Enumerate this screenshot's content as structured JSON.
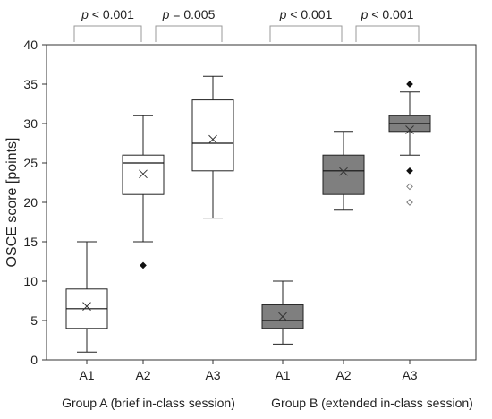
{
  "chart_data": {
    "type": "boxplot",
    "ylabel": "OSCE score [points]",
    "ylim": [
      0,
      40
    ],
    "yticks": [
      0,
      5,
      10,
      15,
      20,
      25,
      30,
      35,
      40
    ],
    "grid": false,
    "boxes": [
      {
        "label": "A1",
        "group": "A",
        "min": 1,
        "q1": 4,
        "median": 6.5,
        "q3": 9,
        "max": 15,
        "mean": 6.8,
        "fill": "#ffffff",
        "outliers": []
      },
      {
        "label": "A2",
        "group": "A",
        "min": 15,
        "q1": 21,
        "median": 25,
        "q3": 26,
        "max": 31,
        "mean": 23.6,
        "fill": "#ffffff",
        "outliers": [
          {
            "value": 12,
            "style": "filled"
          }
        ]
      },
      {
        "label": "A3",
        "group": "A",
        "min": 18,
        "q1": 24,
        "median": 27.5,
        "q3": 33,
        "max": 36,
        "mean": 28,
        "fill": "#ffffff",
        "outliers": []
      },
      {
        "label": "A1",
        "group": "B",
        "min": 2,
        "q1": 4,
        "median": 5,
        "q3": 7,
        "max": 10,
        "mean": 5.5,
        "fill": "#7f7f7f",
        "outliers": []
      },
      {
        "label": "A2",
        "group": "B",
        "min": 19,
        "q1": 21,
        "median": 24,
        "q3": 26,
        "max": 29,
        "mean": 23.9,
        "fill": "#7f7f7f",
        "outliers": []
      },
      {
        "label": "A3",
        "group": "B",
        "min": 26,
        "q1": 29,
        "median": 30,
        "q3": 31,
        "max": 34,
        "mean": 29.2,
        "fill": "#7f7f7f",
        "outliers": [
          {
            "value": 35,
            "style": "filled"
          },
          {
            "value": 24,
            "style": "filled"
          },
          {
            "value": 22,
            "style": "open"
          },
          {
            "value": 20,
            "style": "open"
          }
        ]
      }
    ],
    "group_labels": [
      "Group A (brief in-class session)",
      "Group B (extended in-class session)"
    ],
    "significance": [
      {
        "from": 0,
        "to": 1,
        "italic": "p",
        "rest": " < 0.001"
      },
      {
        "from": 1,
        "to": 2,
        "italic": "p",
        "rest": " = 0.005"
      },
      {
        "from": 3,
        "to": 4,
        "italic": "p",
        "rest": " < 0.001"
      },
      {
        "from": 4,
        "to": 5,
        "italic": "p",
        "rest": " < 0.001"
      }
    ]
  }
}
